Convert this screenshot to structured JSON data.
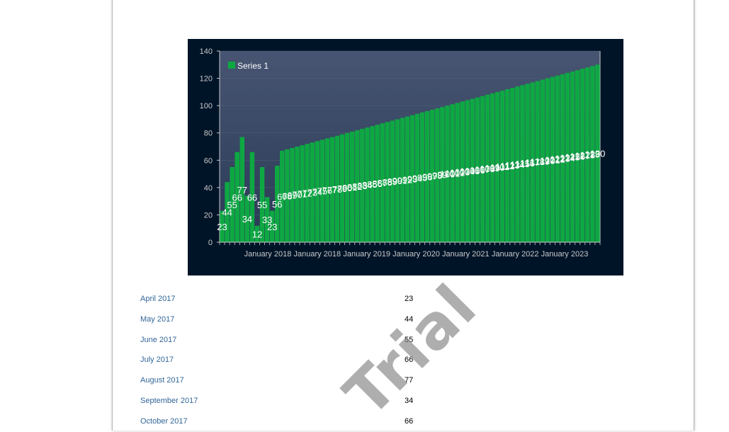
{
  "watermark": "Trial",
  "colors": {
    "chart_background": "#001428",
    "plot_top": "#475572",
    "plot_bottom": "#2a3a55",
    "bar": "#0ea843",
    "axis_text": "#c8c8c8",
    "grid": "#5a6780",
    "table_label": "#336699",
    "table_value": "#000000"
  },
  "chart_data": {
    "type": "bar",
    "legend": [
      "Series 1"
    ],
    "legend_position": "top-left",
    "grid": true,
    "ylim": [
      0,
      140
    ],
    "yticks": [
      0,
      20,
      40,
      60,
      80,
      100,
      120,
      140
    ],
    "xtick_labels": [
      "January 2018",
      "January 2018",
      "January 2019",
      "January 2020",
      "January 2021",
      "January 2022",
      "January 2023"
    ],
    "series": [
      {
        "name": "Series 1",
        "values": [
          23,
          44,
          55,
          66,
          77,
          34,
          66,
          12,
          55,
          33,
          23,
          56,
          67,
          68,
          69,
          70,
          71,
          72,
          73,
          74,
          75,
          76,
          77,
          78,
          79,
          80,
          81,
          82,
          83,
          84,
          85,
          86,
          87,
          88,
          89,
          90,
          91,
          92,
          93,
          94,
          95,
          96,
          97,
          98,
          99,
          100,
          101,
          102,
          103,
          104,
          105,
          106,
          107,
          108,
          109,
          110,
          111,
          112,
          113,
          114,
          115,
          116,
          117,
          118,
          119,
          120,
          121,
          122,
          123,
          124,
          125,
          126,
          127,
          128,
          129,
          130
        ]
      }
    ]
  },
  "table": {
    "rows": [
      {
        "label": "April 2017",
        "value": "23"
      },
      {
        "label": "May 2017",
        "value": "44"
      },
      {
        "label": "June 2017",
        "value": "55"
      },
      {
        "label": "July 2017",
        "value": "66"
      },
      {
        "label": "August 2017",
        "value": "77"
      },
      {
        "label": "September 2017",
        "value": "34"
      },
      {
        "label": "October 2017",
        "value": "66"
      }
    ]
  }
}
